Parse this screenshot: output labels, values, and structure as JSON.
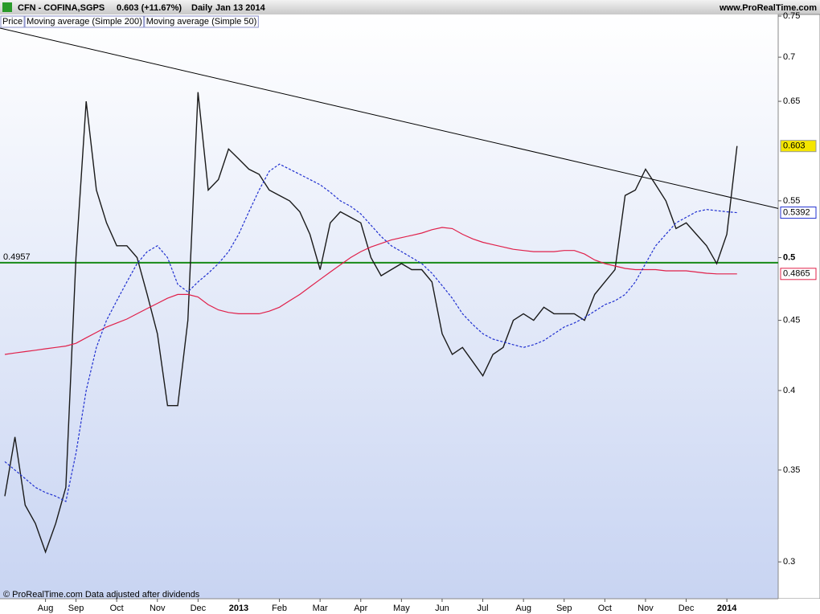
{
  "chart_data": {
    "type": "line",
    "title": "CFN - COFINA,SGPS",
    "subtitle": "0.603 (+11.67%)",
    "interval": "Daily",
    "date": "Jan 13 2014",
    "source": "www.ProRealTime.com",
    "footer": "© ProRealTime.com  Data adjusted after dividends",
    "log_scale": true,
    "ylim": [
      0.282,
      0.75
    ],
    "yticks": [
      0.3,
      0.35,
      0.4,
      0.45,
      0.5,
      0.55,
      0.65,
      0.7,
      0.75
    ],
    "hline": 0.4957,
    "hline_color": "#178a17",
    "trendline": [
      0.735,
      0.543
    ],
    "categories": [
      null,
      null,
      null,
      null,
      "Aug",
      null,
      null,
      "Sep",
      null,
      null,
      null,
      "Oct",
      null,
      null,
      null,
      "Nov",
      null,
      null,
      null,
      "Dec",
      null,
      null,
      null,
      "2013",
      null,
      null,
      null,
      "Feb",
      null,
      null,
      null,
      "Mar",
      null,
      null,
      null,
      "Apr",
      null,
      null,
      null,
      "May",
      null,
      null,
      null,
      "Jun",
      null,
      null,
      null,
      "Jul",
      null,
      null,
      null,
      "Aug",
      null,
      null,
      null,
      "Sep",
      null,
      null,
      null,
      "Oct",
      null,
      null,
      null,
      "Nov",
      null,
      null,
      null,
      "Dec",
      null,
      null,
      null,
      "2014",
      null
    ],
    "series": [
      {
        "name": "Price",
        "color": "#1a1a1a",
        "values": [
          0.335,
          0.37,
          0.33,
          0.32,
          0.305,
          0.32,
          0.34,
          0.5,
          0.65,
          0.56,
          0.53,
          0.51,
          0.51,
          0.5,
          0.47,
          0.44,
          0.39,
          0.39,
          0.45,
          0.66,
          0.56,
          0.57,
          0.6,
          0.59,
          0.58,
          0.575,
          0.56,
          0.555,
          0.55,
          0.54,
          0.52,
          0.49,
          0.53,
          0.54,
          0.535,
          0.53,
          0.5,
          0.485,
          0.49,
          0.495,
          0.49,
          0.49,
          0.48,
          0.44,
          0.425,
          0.43,
          0.42,
          0.41,
          0.425,
          0.43,
          0.45,
          0.455,
          0.45,
          0.46,
          0.455,
          0.455,
          0.455,
          0.45,
          0.47,
          0.48,
          0.49,
          0.555,
          0.56,
          0.58,
          0.565,
          0.55,
          0.525,
          0.53,
          0.52,
          0.51,
          0.495,
          0.52,
          0.603
        ]
      },
      {
        "name": "Moving average (Simple 200)",
        "color": "#e0204a",
        "values": [
          0.425,
          0.426,
          0.427,
          0.428,
          0.429,
          0.43,
          0.431,
          0.433,
          0.437,
          0.441,
          0.445,
          0.448,
          0.451,
          0.455,
          0.459,
          0.463,
          0.467,
          0.47,
          0.47,
          0.468,
          0.462,
          0.458,
          0.456,
          0.455,
          0.455,
          0.455,
          0.457,
          0.46,
          0.465,
          0.47,
          0.476,
          0.482,
          0.488,
          0.494,
          0.5,
          0.505,
          0.509,
          0.512,
          0.515,
          0.517,
          0.519,
          0.521,
          0.524,
          0.526,
          0.525,
          0.52,
          0.516,
          0.513,
          0.511,
          0.509,
          0.507,
          0.506,
          0.505,
          0.505,
          0.505,
          0.506,
          0.506,
          0.503,
          0.498,
          0.495,
          0.493,
          0.491,
          0.49,
          0.49,
          0.49,
          0.489,
          0.489,
          0.489,
          0.488,
          0.487,
          0.4865,
          0.4865,
          0.4865
        ]
      },
      {
        "name": "Moving average (Simple 50)",
        "color": "#2030d0",
        "dashed": true,
        "values": [
          0.355,
          0.35,
          0.345,
          0.34,
          0.337,
          0.335,
          0.332,
          0.36,
          0.4,
          0.43,
          0.45,
          0.465,
          0.48,
          0.495,
          0.505,
          0.51,
          0.5,
          0.478,
          0.472,
          0.48,
          0.487,
          0.495,
          0.505,
          0.52,
          0.54,
          0.56,
          0.578,
          0.585,
          0.58,
          0.575,
          0.57,
          0.565,
          0.558,
          0.55,
          0.545,
          0.538,
          0.528,
          0.518,
          0.51,
          0.505,
          0.5,
          0.495,
          0.487,
          0.477,
          0.467,
          0.455,
          0.447,
          0.44,
          0.436,
          0.434,
          0.432,
          0.43,
          0.432,
          0.435,
          0.44,
          0.445,
          0.448,
          0.452,
          0.457,
          0.462,
          0.465,
          0.47,
          0.48,
          0.495,
          0.51,
          0.52,
          0.53,
          0.535,
          0.54,
          0.542,
          0.541,
          0.54,
          0.5392
        ]
      }
    ],
    "last_box_colors": [
      "#f5e600",
      "#ffffff",
      "#ffffff"
    ]
  }
}
